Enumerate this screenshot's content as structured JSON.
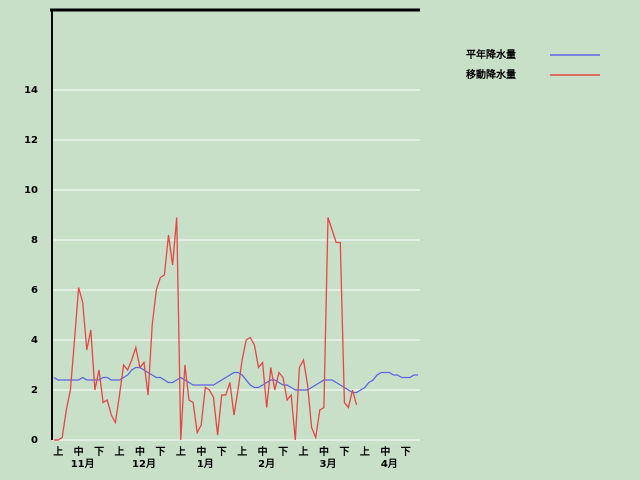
{
  "chart_data": {
    "type": "line",
    "categories": [
      null,
      null,
      "上",
      null,
      null,
      null,
      null,
      "中",
      null,
      null,
      null,
      null,
      "下",
      null,
      null,
      null,
      null,
      "上",
      null,
      null,
      null,
      null,
      "中",
      null,
      null,
      null,
      null,
      "下",
      null,
      null,
      null,
      null,
      "上",
      null,
      null,
      null,
      null,
      "中",
      null,
      null,
      null,
      null,
      "下",
      null,
      null,
      null,
      null,
      "上",
      null,
      null,
      null,
      null,
      "中",
      null,
      null,
      null,
      null,
      "下",
      null,
      null,
      null,
      null,
      "上",
      null,
      null,
      null,
      null,
      "中",
      null,
      null,
      null,
      null,
      "下",
      null,
      null,
      null,
      null,
      "上",
      null,
      null,
      null,
      null,
      "中",
      null,
      null,
      null,
      null,
      "下",
      null,
      null
    ],
    "months": [
      "11月",
      "12月",
      "1月",
      "2月",
      "3月",
      "4月"
    ],
    "series": [
      {
        "name": "平年降水量",
        "color": "#5a64e6",
        "values": [
          2.5,
          2.4,
          2.4,
          2.4,
          2.4,
          2.4,
          2.4,
          2.5,
          2.4,
          2.4,
          2.4,
          2.4,
          2.5,
          2.5,
          2.4,
          2.4,
          2.4,
          2.5,
          2.6,
          2.8,
          2.9,
          2.9,
          2.8,
          2.7,
          2.6,
          2.5,
          2.5,
          2.4,
          2.3,
          2.3,
          2.4,
          2.5,
          2.4,
          2.3,
          2.2,
          2.2,
          2.2,
          2.2,
          2.2,
          2.2,
          2.3,
          2.4,
          2.5,
          2.6,
          2.7,
          2.7,
          2.6,
          2.4,
          2.2,
          2.1,
          2.1,
          2.2,
          2.3,
          2.4,
          2.4,
          2.3,
          2.2,
          2.2,
          2.1,
          2.0,
          2.0,
          2.0,
          2.0,
          2.1,
          2.2,
          2.3,
          2.4,
          2.4,
          2.4,
          2.3,
          2.2,
          2.1,
          2.0,
          1.9,
          1.9,
          2.0,
          2.1,
          2.3,
          2.4,
          2.6,
          2.7,
          2.7,
          2.7,
          2.6,
          2.6,
          2.5,
          2.5,
          2.5,
          2.6,
          2.6
        ]
      },
      {
        "name": "移動降水量",
        "color": "#e64646",
        "values": [
          0,
          0,
          0.1,
          1.2,
          2.0,
          4.0,
          6.1,
          5.5,
          3.6,
          4.4,
          2.0,
          2.8,
          1.5,
          1.6,
          1.0,
          0.7,
          1.8,
          3.0,
          2.8,
          3.2,
          3.7,
          2.9,
          3.1,
          1.8,
          4.6,
          6.0,
          6.5,
          6.6,
          8.2,
          7.0,
          8.9,
          0,
          3.0,
          1.6,
          1.5,
          0.3,
          0.6,
          2.1,
          2.0,
          1.7,
          0.2,
          1.8,
          1.8,
          2.3,
          1.0,
          2.0,
          3.2,
          4.0,
          4.1,
          3.8,
          2.9,
          3.1,
          1.3,
          2.9,
          2.0,
          2.7,
          2.5,
          1.6,
          1.8,
          0,
          2.9,
          3.2,
          2.2,
          0.5,
          0.1,
          1.2,
          1.3,
          8.9,
          8.4,
          7.9,
          7.9,
          1.5,
          1.3,
          2.0,
          1.4,
          null,
          null,
          null,
          null,
          null,
          null,
          null,
          null,
          null,
          null,
          null,
          null,
          null,
          null,
          null
        ]
      }
    ],
    "ylim": [
      0,
      17.2
    ],
    "yticks": [
      0,
      2,
      4,
      6,
      8,
      10,
      12,
      14
    ],
    "grid": true
  }
}
